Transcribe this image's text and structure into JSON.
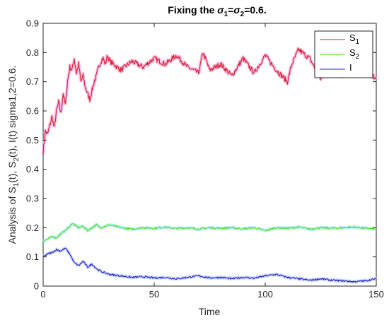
{
  "chart_data": {
    "type": "line",
    "title": {
      "prefix": "Fixing the ",
      "sym1": "σ",
      "sub1": "1",
      "eq1": "=",
      "sym2": "σ",
      "sub2": "2",
      "suffix": "=0.6."
    },
    "xlabel": "Time",
    "ylabel": {
      "p1": "Analysis of S",
      "s1": "1",
      "p2": "(t), S",
      "s2": "2",
      "p3": "(t), I(t) sigma1,2=0.6."
    },
    "xlim": [
      0,
      150
    ],
    "ylim": [
      0,
      0.9
    ],
    "xticks": [
      "0",
      "50",
      "100",
      "150"
    ],
    "yticks": [
      "0",
      "0.1",
      "0.2",
      "0.3",
      "0.4",
      "0.5",
      "0.6",
      "0.7",
      "0.8",
      "0.9"
    ],
    "grid": false,
    "legend_position": "top-right",
    "series": [
      {
        "name": "S1",
        "legend_label": {
          "base": "S",
          "sub": "1"
        },
        "color": "#d62020",
        "shadow_color": "#f5a8e0",
        "x": [
          0,
          1,
          2,
          3,
          4,
          5,
          6,
          7,
          8,
          9,
          10,
          11,
          12,
          13,
          14,
          15,
          16,
          17,
          18,
          19,
          20,
          21,
          22,
          23,
          24,
          25,
          26,
          27,
          28,
          29,
          30,
          35,
          40,
          45,
          50,
          55,
          60,
          65,
          70,
          72,
          75,
          80,
          85,
          90,
          95,
          100,
          105,
          110,
          112,
          115,
          120,
          125,
          130,
          135,
          140,
          145,
          150
        ],
        "values": [
          0.46,
          0.53,
          0.52,
          0.55,
          0.58,
          0.54,
          0.6,
          0.63,
          0.59,
          0.66,
          0.62,
          0.7,
          0.75,
          0.74,
          0.78,
          0.73,
          0.76,
          0.7,
          0.72,
          0.68,
          0.66,
          0.64,
          0.67,
          0.7,
          0.72,
          0.75,
          0.77,
          0.78,
          0.76,
          0.79,
          0.77,
          0.74,
          0.77,
          0.75,
          0.78,
          0.76,
          0.79,
          0.75,
          0.73,
          0.8,
          0.74,
          0.76,
          0.72,
          0.78,
          0.73,
          0.79,
          0.74,
          0.7,
          0.76,
          0.81,
          0.78,
          0.71,
          0.76,
          0.72,
          0.77,
          0.74,
          0.71
        ]
      },
      {
        "name": "S2",
        "legend_label": {
          "base": "S",
          "sub": "2"
        },
        "color": "#44dd1c",
        "shadow_color": "#b8f0f5",
        "x": [
          0,
          2,
          4,
          6,
          8,
          10,
          12,
          13,
          14,
          16,
          18,
          20,
          22,
          24,
          26,
          28,
          30,
          35,
          40,
          45,
          50,
          55,
          60,
          65,
          70,
          75,
          80,
          85,
          90,
          95,
          100,
          105,
          110,
          115,
          120,
          125,
          130,
          135,
          140,
          145,
          150
        ],
        "values": [
          0.155,
          0.16,
          0.17,
          0.165,
          0.18,
          0.19,
          0.205,
          0.215,
          0.21,
          0.2,
          0.205,
          0.19,
          0.2,
          0.21,
          0.2,
          0.205,
          0.21,
          0.2,
          0.195,
          0.2,
          0.198,
          0.202,
          0.197,
          0.2,
          0.195,
          0.2,
          0.198,
          0.2,
          0.196,
          0.2,
          0.19,
          0.2,
          0.198,
          0.202,
          0.195,
          0.2,
          0.198,
          0.2,
          0.202,
          0.198,
          0.195
        ]
      },
      {
        "name": "I",
        "legend_label": {
          "base": "I",
          "sub": ""
        },
        "color": "#1a1acc",
        "shadow_color": "#c8d4f5",
        "x": [
          0,
          2,
          4,
          6,
          8,
          10,
          12,
          14,
          16,
          18,
          20,
          22,
          24,
          26,
          28,
          30,
          35,
          40,
          45,
          50,
          55,
          60,
          65,
          70,
          75,
          80,
          85,
          90,
          95,
          100,
          105,
          110,
          115,
          120,
          125,
          130,
          135,
          140,
          145,
          150
        ],
        "values": [
          0.1,
          0.11,
          0.115,
          0.125,
          0.12,
          0.13,
          0.11,
          0.08,
          0.07,
          0.085,
          0.065,
          0.075,
          0.06,
          0.05,
          0.045,
          0.04,
          0.035,
          0.03,
          0.032,
          0.028,
          0.03,
          0.025,
          0.03,
          0.035,
          0.028,
          0.03,
          0.025,
          0.03,
          0.027,
          0.035,
          0.04,
          0.03,
          0.025,
          0.02,
          0.025,
          0.02,
          0.018,
          0.015,
          0.018,
          0.025
        ]
      }
    ]
  }
}
